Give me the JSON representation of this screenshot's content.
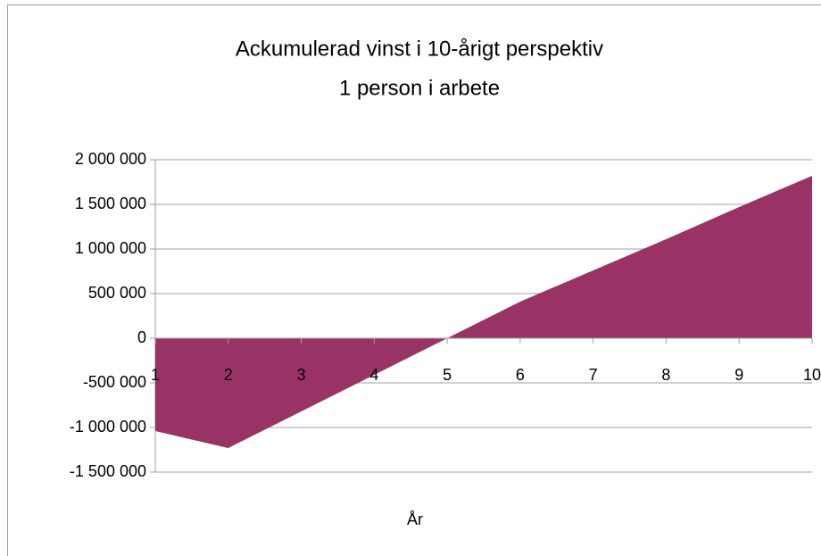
{
  "chart_data": {
    "type": "area",
    "title": "Ackumulerad vinst i 10-årigt perspektiv",
    "subtitle": "1 person i arbete",
    "x_label": "År",
    "categories": [
      "1",
      "2",
      "3",
      "4",
      "5",
      "6",
      "7",
      "8",
      "9",
      "10"
    ],
    "series": [
      {
        "name": "Ackumulerad vinst",
        "color": "#993366",
        "values": [
          -1040000,
          -1230000,
          -820000,
          -410000,
          0,
          410000,
          760000,
          1110000,
          1470000,
          1820000
        ]
      }
    ],
    "ylim": [
      -1500000,
      2000000
    ],
    "yticks": [
      {
        "value": 2000000,
        "label": "2 000 000"
      },
      {
        "value": 1500000,
        "label": "1 500 000"
      },
      {
        "value": 1000000,
        "label": "1 000 000"
      },
      {
        "value": 500000,
        "label": "500 000"
      },
      0,
      {
        "value": -500000,
        "label": "-500 000"
      },
      {
        "value": -1000000,
        "label": "-1 000 000"
      },
      {
        "value": -1500000,
        "label": "-1 500 000"
      }
    ],
    "grid": true
  }
}
